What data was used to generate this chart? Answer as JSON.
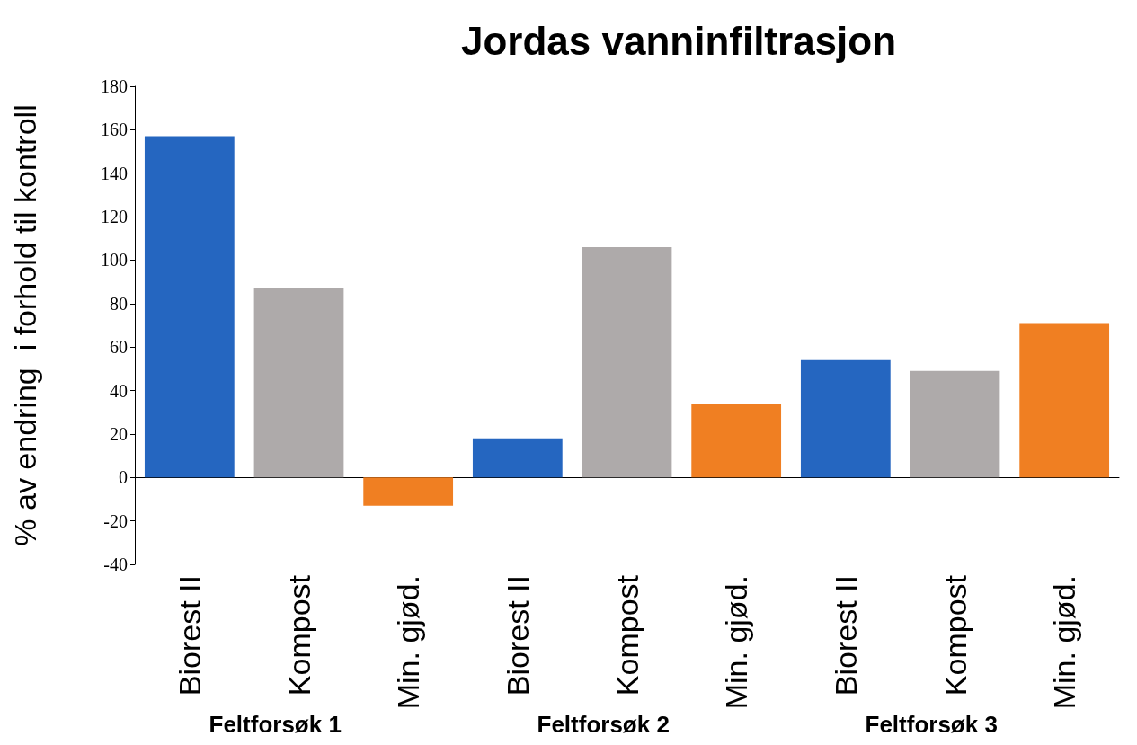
{
  "chart_data": {
    "type": "bar",
    "title": "Jordas vanninfiltrasjon",
    "ylabel": "% av endring  i forhold til kontroll",
    "categories": [
      "Biorest II",
      "Kompost",
      "Min. gjød.",
      "Biorest II",
      "Kompost",
      "Min. gjød.",
      "Biorest II",
      "Kompost",
      "Min. gjød."
    ],
    "values": [
      157,
      87,
      -13,
      18,
      106,
      34,
      54,
      49,
      71
    ],
    "colors": [
      "#2566c0",
      "#aeaaaa",
      "#f07f22",
      "#2566c0",
      "#aeaaaa",
      "#f07f22",
      "#2566c0",
      "#aeaaaa",
      "#f07f22"
    ],
    "ylim": [
      -40,
      180
    ],
    "yticks": [
      -40,
      -20,
      0,
      20,
      40,
      60,
      80,
      100,
      120,
      140,
      160,
      180
    ],
    "annotations": [
      "Feltforsøk 1",
      "Feltforsøk 2",
      "Feltforsøk 3"
    ]
  }
}
